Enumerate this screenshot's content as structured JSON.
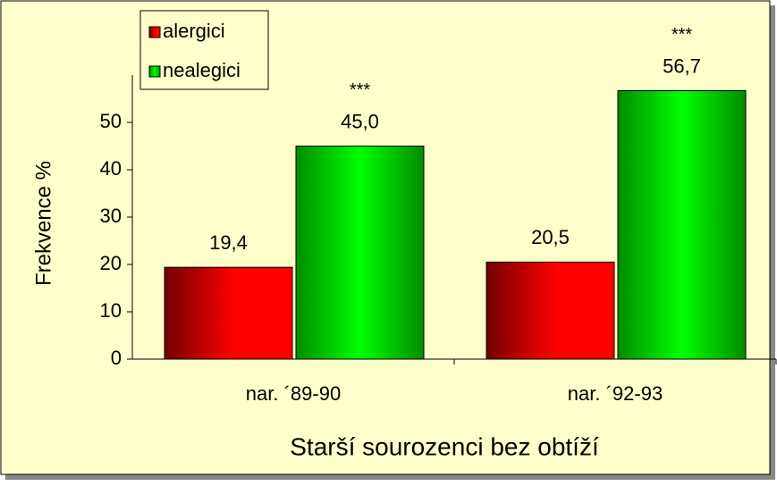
{
  "chart_data": {
    "type": "bar",
    "x_label": "Starší sourozenci bez obtíží",
    "y_label": "Frekvence %",
    "categories": [
      "nar. ´89-90",
      "nar. ´92-93"
    ],
    "series": [
      {
        "name": "alergici",
        "color": "#ff0000",
        "values": [
          19.4,
          20.5
        ],
        "value_labels": [
          "19,4",
          "20,5"
        ]
      },
      {
        "name": "nealegici",
        "color": "#00ff00",
        "values": [
          45.0,
          56.7
        ],
        "value_labels": [
          "45,0",
          "56,7"
        ],
        "value_notes": [
          "***",
          "***"
        ]
      }
    ],
    "ylim": [
      0,
      60
    ],
    "yticks": [
      0,
      10,
      20,
      30,
      40,
      50
    ],
    "legend": "top-left",
    "background": "#ffffcc"
  }
}
